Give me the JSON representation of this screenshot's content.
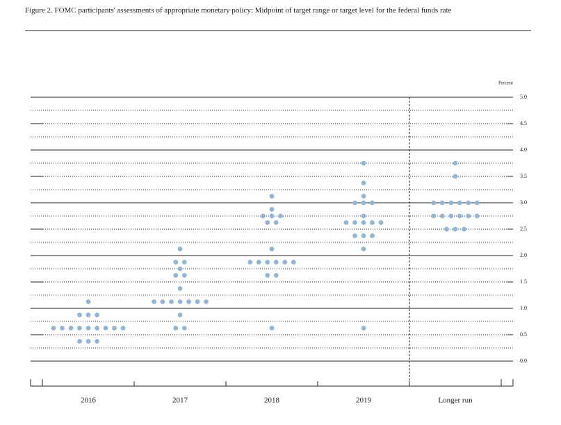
{
  "chart_data": {
    "type": "dot",
    "title": "Figure 2. FOMC participants' assessments of appropriate monetary policy: Midpoint of target range or target level for the federal funds rate",
    "y_label": "Percent",
    "color": "#92b4d6",
    "ylim": [
      0,
      5
    ],
    "yticks": [
      {
        "value": 0,
        "label": "0.0"
      },
      {
        "value": 0.5,
        "label": "0.5"
      },
      {
        "value": 1,
        "label": "1.0"
      },
      {
        "value": 1.5,
        "label": "1.5"
      },
      {
        "value": 2,
        "label": "2.0"
      },
      {
        "value": 2.5,
        "label": "2.5"
      },
      {
        "value": 3,
        "label": "3.0"
      },
      {
        "value": 3.5,
        "label": "3.5"
      },
      {
        "value": 4,
        "label": "4.0"
      },
      {
        "value": 4.5,
        "label": "4.5"
      },
      {
        "value": 5,
        "label": "5.0"
      }
    ],
    "categories": [
      "2016",
      "2017",
      "2018",
      "2019",
      "Longer run"
    ],
    "points": [
      [
        {
          "value": 1.125,
          "count": 1
        },
        {
          "value": 0.875,
          "count": 3
        },
        {
          "value": 0.625,
          "count": 9
        },
        {
          "value": 0.375,
          "count": 3
        }
      ],
      [
        {
          "value": 2.125,
          "count": 1
        },
        {
          "value": 1.875,
          "count": 2
        },
        {
          "value": 1.75,
          "count": 1
        },
        {
          "value": 1.625,
          "count": 2
        },
        {
          "value": 1.375,
          "count": 1
        },
        {
          "value": 1.125,
          "count": 7
        },
        {
          "value": 0.875,
          "count": 1
        },
        {
          "value": 0.625,
          "count": 2
        }
      ],
      [
        {
          "value": 3.125,
          "count": 1
        },
        {
          "value": 2.875,
          "count": 1
        },
        {
          "value": 2.75,
          "count": 3
        },
        {
          "value": 2.625,
          "count": 2
        },
        {
          "value": 2.125,
          "count": 1
        },
        {
          "value": 1.875,
          "count": 6
        },
        {
          "value": 1.625,
          "count": 2
        },
        {
          "value": 0.625,
          "count": 1
        }
      ],
      [
        {
          "value": 3.75,
          "count": 1
        },
        {
          "value": 3.375,
          "count": 1
        },
        {
          "value": 3.125,
          "count": 1
        },
        {
          "value": 3.0,
          "count": 3
        },
        {
          "value": 2.75,
          "count": 1
        },
        {
          "value": 2.625,
          "count": 5
        },
        {
          "value": 2.375,
          "count": 3
        },
        {
          "value": 2.125,
          "count": 1
        },
        {
          "value": 0.625,
          "count": 1
        }
      ],
      [
        {
          "value": 3.75,
          "count": 1
        },
        {
          "value": 3.5,
          "count": 1
        },
        {
          "value": 3.0,
          "count": 6
        },
        {
          "value": 2.75,
          "count": 6
        },
        {
          "value": 2.5,
          "count": 3
        }
      ]
    ]
  }
}
